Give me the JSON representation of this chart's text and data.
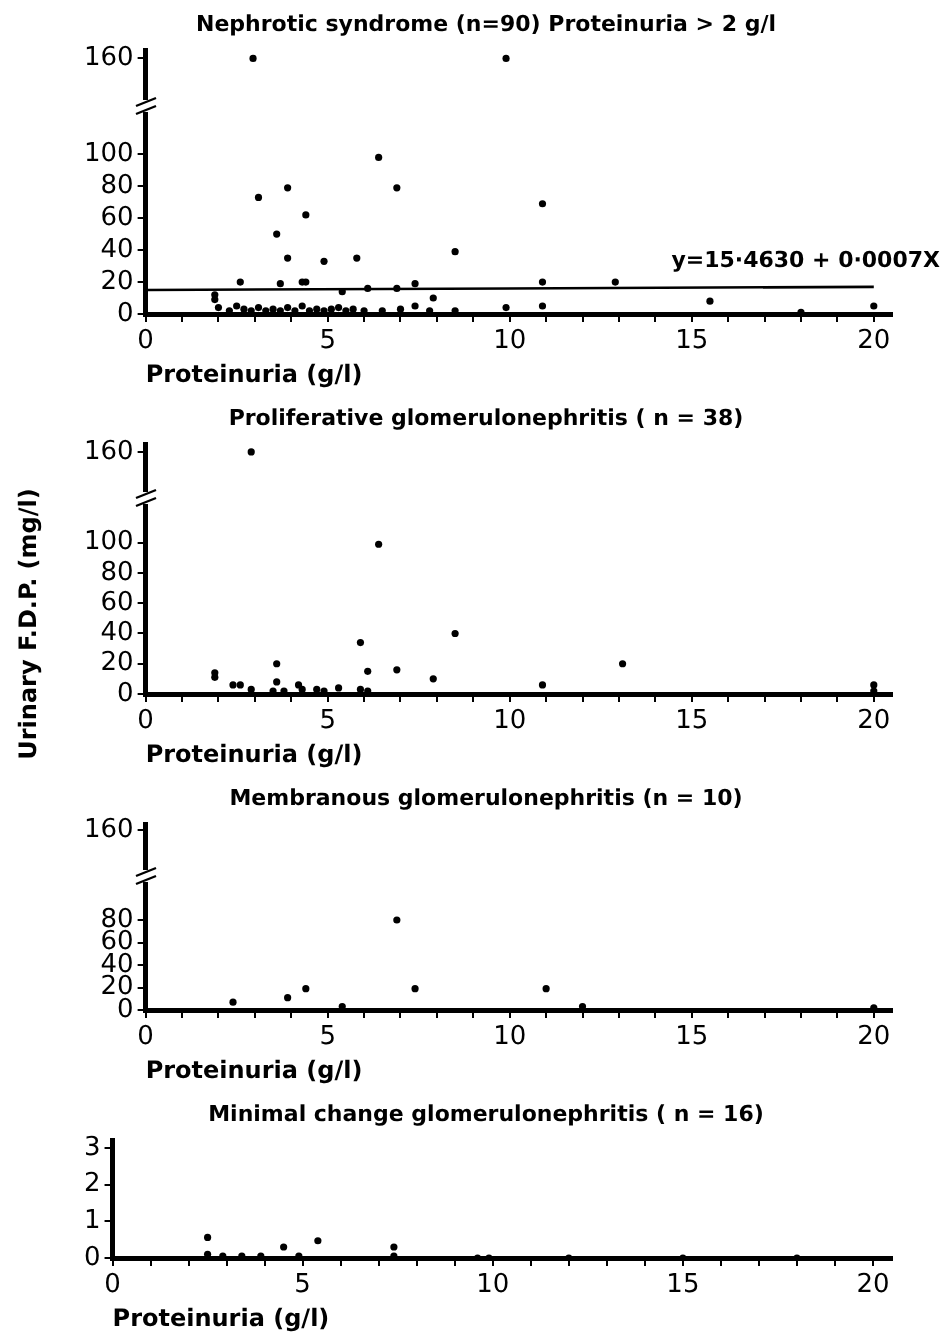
{
  "chart_data": [
    {
      "type": "scatter",
      "title": "Nephrotic syndrome (n=90) Proteinuria > 2 g/l",
      "xlabel": "Proteinuria (g/l)",
      "marker": "circle",
      "grid": false,
      "legend": false,
      "xlim": [
        0,
        20.5
      ],
      "xticks": [
        0,
        {
          "value": 1,
          "label": null
        },
        {
          "value": 2,
          "label": null
        },
        {
          "value": 3,
          "label": null
        },
        {
          "value": 4,
          "label": null
        },
        5,
        {
          "value": 6,
          "label": null
        },
        {
          "value": 7,
          "label": null
        },
        {
          "value": 8,
          "label": null
        },
        {
          "value": 9,
          "label": null
        },
        10,
        {
          "value": 11,
          "label": null
        },
        {
          "value": 12,
          "label": null
        },
        {
          "value": 13,
          "label": null
        },
        {
          "value": 14,
          "label": null
        },
        15,
        {
          "value": 16,
          "label": null
        },
        {
          "value": 17,
          "label": null
        },
        {
          "value": 18,
          "label": null
        },
        {
          "value": 19,
          "label": null
        },
        20
      ],
      "ylim": [
        0,
        165
      ],
      "yticks": [
        0,
        20,
        40,
        60,
        80,
        100,
        160
      ],
      "annotations": [
        "y=15·4630 + 0·0007X"
      ],
      "series": [
        {
          "type": "scatter",
          "color": "#000000",
          "x": [
            2.95,
            9.9,
            6.4,
            3.9,
            6.9,
            3.1,
            10.9,
            4.4,
            3.6,
            8.5,
            3.9,
            4.9,
            5.8,
            2.6,
            3.7,
            4.3,
            4.4,
            5.4,
            6.1,
            6.9,
            7.4,
            7.9,
            10.9,
            12.9,
            1.9,
            1.9,
            15.5,
            10.9,
            9.9,
            20,
            18,
            8.5,
            7.4,
            2.0,
            2.3,
            2.5,
            2.7,
            2.9,
            3.1,
            3.3,
            3.5,
            3.7,
            3.9,
            4.1,
            4.3,
            4.5,
            4.7,
            4.9,
            5.1,
            5.3,
            5.5,
            5.7,
            6.0,
            6.5,
            7.0,
            7.8
          ],
          "values": [
            160,
            160,
            98,
            79,
            79,
            73,
            69,
            62,
            50,
            39,
            35,
            33,
            35,
            20,
            19,
            20,
            20,
            14,
            16,
            16,
            19,
            10,
            20,
            20,
            12,
            9,
            8,
            5,
            4,
            5,
            1,
            2,
            5,
            4,
            2,
            5,
            3,
            2,
            4,
            2,
            3,
            2,
            4,
            2,
            5,
            2,
            3,
            2,
            3,
            4,
            2,
            3,
            2,
            2,
            3,
            2
          ]
        },
        {
          "type": "line",
          "color": "#000000",
          "marker": "none",
          "x": [
            0,
            20
          ],
          "values": [
            15,
            17
          ]
        }
      ]
    },
    {
      "type": "scatter",
      "title": "Proliferative glomerulonephritis ( n = 38)",
      "xlabel": "Proteinuria (g/l)",
      "ylabel": "Urinary F.D.P. (mg/l)",
      "marker": "circle",
      "grid": false,
      "legend": false,
      "xlim": [
        0,
        20.5
      ],
      "xticks": [
        0,
        {
          "value": 1,
          "label": null
        },
        {
          "value": 2,
          "label": null
        },
        {
          "value": 3,
          "label": null
        },
        {
          "value": 4,
          "label": null
        },
        5,
        {
          "value": 6,
          "label": null
        },
        {
          "value": 7,
          "label": null
        },
        {
          "value": 8,
          "label": null
        },
        {
          "value": 9,
          "label": null
        },
        10,
        {
          "value": 11,
          "label": null
        },
        {
          "value": 12,
          "label": null
        },
        {
          "value": 13,
          "label": null
        },
        {
          "value": 14,
          "label": null
        },
        15,
        {
          "value": 16,
          "label": null
        },
        {
          "value": 17,
          "label": null
        },
        {
          "value": 18,
          "label": null
        },
        {
          "value": 19,
          "label": null
        },
        20
      ],
      "ylim": [
        0,
        165
      ],
      "yticks": [
        0,
        20,
        40,
        60,
        80,
        100,
        160
      ],
      "series": [
        {
          "type": "scatter",
          "color": "#000000",
          "x": [
            2.9,
            6.4,
            8.5,
            5.9,
            3.6,
            13.1,
            1.9,
            1.9,
            6.9,
            6.1,
            7.9,
            3.6,
            10.9,
            20,
            20,
            2.4,
            2.6,
            2.9,
            3.5,
            3.8,
            4.2,
            4.3,
            4.7,
            4.9,
            5.3,
            5.9,
            6.1
          ],
          "values": [
            160,
            99,
            40,
            34,
            20,
            20,
            14,
            11,
            16,
            15,
            10,
            8,
            6,
            6,
            2,
            6,
            6,
            3,
            2,
            2,
            6,
            3,
            3,
            2,
            4,
            3,
            2
          ]
        }
      ]
    },
    {
      "type": "scatter",
      "title": "Membranous glomerulonephritis (n = 10)",
      "xlabel": "Proteinuria (g/l)",
      "marker": "circle",
      "grid": false,
      "legend": false,
      "xlim": [
        0,
        20.5
      ],
      "xticks": [
        0,
        {
          "value": 1,
          "label": null
        },
        {
          "value": 2,
          "label": null
        },
        {
          "value": 3,
          "label": null
        },
        {
          "value": 4,
          "label": null
        },
        5,
        {
          "value": 6,
          "label": null
        },
        {
          "value": 7,
          "label": null
        },
        {
          "value": 8,
          "label": null
        },
        {
          "value": 9,
          "label": null
        },
        10,
        {
          "value": 11,
          "label": null
        },
        {
          "value": 12,
          "label": null
        },
        {
          "value": 13,
          "label": null
        },
        {
          "value": 14,
          "label": null
        },
        15,
        {
          "value": 16,
          "label": null
        },
        {
          "value": 17,
          "label": null
        },
        {
          "value": 18,
          "label": null
        },
        {
          "value": 19,
          "label": null
        },
        20
      ],
      "ylim": [
        0,
        165
      ],
      "yticks": [
        0,
        20,
        40,
        60,
        80,
        160
      ],
      "series": [
        {
          "type": "scatter",
          "color": "#000000",
          "x": [
            2.4,
            3.9,
            4.4,
            5.4,
            6.9,
            7.4,
            11,
            12,
            20
          ],
          "values": [
            7,
            11,
            19,
            3,
            80,
            19,
            19,
            3,
            2
          ]
        }
      ]
    },
    {
      "type": "scatter",
      "title": "Minimal change glomerulonephritis ( n = 16)",
      "xlabel": "Proteinuria (g/l)",
      "marker": "circle",
      "grid": false,
      "legend": false,
      "xlim": [
        0,
        20.5
      ],
      "xticks": [
        0,
        {
          "value": 1,
          "label": null
        },
        {
          "value": 2,
          "label": null
        },
        {
          "value": 3,
          "label": null
        },
        {
          "value": 4,
          "label": null
        },
        5,
        {
          "value": 6,
          "label": null
        },
        {
          "value": 7,
          "label": null
        },
        {
          "value": 8,
          "label": null
        },
        {
          "value": 9,
          "label": null
        },
        10,
        {
          "value": 11,
          "label": null
        },
        {
          "value": 12,
          "label": null
        },
        {
          "value": 13,
          "label": null
        },
        {
          "value": 14,
          "label": null
        },
        15,
        {
          "value": 16,
          "label": null
        },
        {
          "value": 17,
          "label": null
        },
        {
          "value": 18,
          "label": null
        },
        {
          "value": 19,
          "label": null
        },
        20
      ],
      "ylim": [
        0,
        3.2
      ],
      "yticks": [
        0,
        1,
        2,
        3
      ],
      "series": [
        {
          "type": "scatter",
          "color": "#000000",
          "x": [
            2.5,
            2.5,
            2.9,
            3.4,
            3.9,
            4.5,
            4.9,
            5.4,
            7.4,
            7.4,
            9.6,
            9.9,
            12,
            15,
            18
          ],
          "values": [
            0.56,
            0.1,
            0.05,
            0.05,
            0.05,
            0.3,
            0.05,
            0.47,
            0.3,
            0.05,
            0,
            0,
            0,
            0,
            0
          ]
        }
      ]
    }
  ]
}
